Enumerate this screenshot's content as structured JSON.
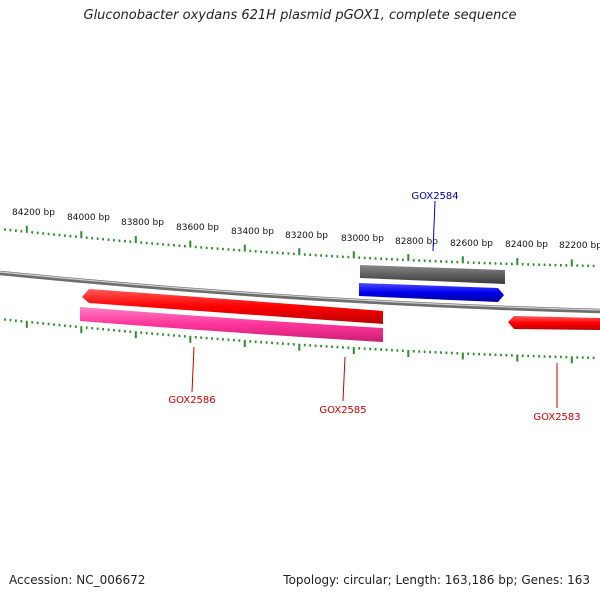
{
  "title": "Gluconobacter oxydans 621H plasmid pGOX1, complete sequence",
  "footer": {
    "accession": "Accession: NC_006672",
    "summary": "Topology: circular; Length: 163,186 bp; Genes: 163"
  },
  "scale_labels": [
    "84200 bp",
    "84000 bp",
    "83800 bp",
    "83600 bp",
    "83400 bp",
    "83200 bp",
    "83000 bp",
    "82800 bp",
    "82600 bp",
    "82400 bp",
    "82200 bp"
  ],
  "genes": [
    {
      "name": "GOX2584",
      "strand": "forward",
      "color": "#0000cc",
      "label_color": "#0000aa"
    },
    {
      "name": "GOX2586",
      "strand": "reverse",
      "color": "#ff0000",
      "label_color": "#cc0000"
    },
    {
      "name": "GOX2585",
      "strand": "reverse",
      "color": "#ff3399",
      "label_color": "#cc0000"
    },
    {
      "name": "GOX2583",
      "strand": "reverse",
      "color": "#ff0000",
      "label_color": "#cc0000"
    }
  ],
  "colors": {
    "backbone": "#9a9a9a",
    "ticks": "#2e8b2e",
    "other_feature": "#666666"
  }
}
